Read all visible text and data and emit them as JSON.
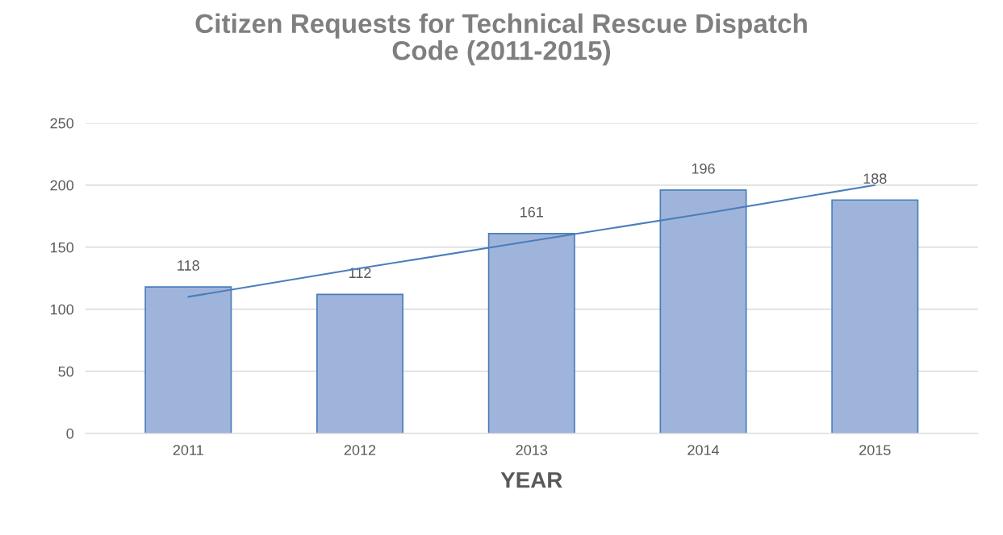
{
  "chart_data": {
    "type": "bar",
    "title": "Citizen Requests for Technical Rescue Dispatch\nCode (2011-2015)",
    "xlabel": "YEAR",
    "categories": [
      "2011",
      "2012",
      "2013",
      "2014",
      "2015"
    ],
    "series": [
      {
        "color": "#9fb4da",
        "values": [
          118,
          112,
          161,
          196,
          188
        ],
        "value_labels": [
          "118",
          "112",
          "161",
          "196",
          "188"
        ]
      },
      {
        "type": "line",
        "color": "#4a7ebb",
        "values": [
          110,
          133,
          155,
          177,
          200
        ]
      }
    ],
    "ylim": [
      0,
      250
    ],
    "yticks": [
      0,
      50,
      100,
      150,
      200,
      250
    ],
    "grid": "y"
  }
}
